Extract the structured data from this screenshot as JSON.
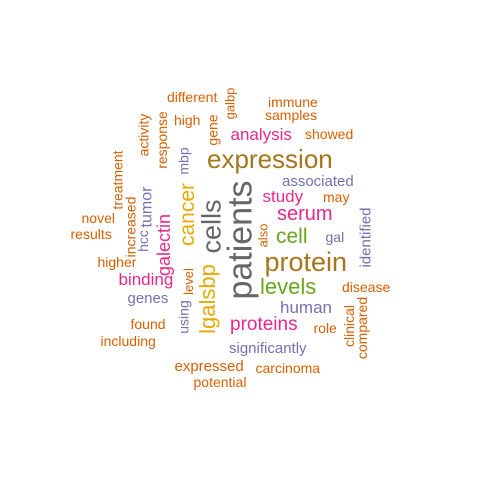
{
  "palette": {
    "orange": "#D95F02",
    "purple": "#7570B3",
    "magenta": "#E7298A",
    "green": "#66A61E",
    "gold": "#E6AB02",
    "brown": "#A6761D",
    "gray": "#666666"
  },
  "words": [
    {
      "text": "patients",
      "color": "gray",
      "vertical": true
    },
    {
      "text": "expression",
      "color": "brown",
      "vertical": false
    },
    {
      "text": "protein",
      "color": "brown",
      "vertical": false
    },
    {
      "text": "cells",
      "color": "gray",
      "vertical": true
    },
    {
      "text": "lgalsbp",
      "color": "gold",
      "vertical": true
    },
    {
      "text": "cancer",
      "color": "gold",
      "vertical": true
    },
    {
      "text": "levels",
      "color": "green",
      "vertical": false
    },
    {
      "text": "cell",
      "color": "green",
      "vertical": false
    },
    {
      "text": "serum",
      "color": "magenta",
      "vertical": false
    },
    {
      "text": "proteins",
      "color": "magenta",
      "vertical": false
    },
    {
      "text": "galectin",
      "color": "magenta",
      "vertical": true
    },
    {
      "text": "binding",
      "color": "magenta",
      "vertical": false
    },
    {
      "text": "analysis",
      "color": "magenta",
      "vertical": false
    },
    {
      "text": "study",
      "color": "magenta",
      "vertical": false
    },
    {
      "text": "tumor",
      "color": "purple",
      "vertical": true
    },
    {
      "text": "human",
      "color": "purple",
      "vertical": false
    },
    {
      "text": "genes",
      "color": "purple",
      "vertical": false
    },
    {
      "text": "associated",
      "color": "purple",
      "vertical": false
    },
    {
      "text": "significantly",
      "color": "purple",
      "vertical": false
    },
    {
      "text": "identified",
      "color": "purple",
      "vertical": true
    },
    {
      "text": "hcc",
      "color": "purple",
      "vertical": true
    },
    {
      "text": "mbp",
      "color": "purple",
      "vertical": true
    },
    {
      "text": "gal",
      "color": "purple",
      "vertical": false
    },
    {
      "text": "using",
      "color": "purple",
      "vertical": true
    },
    {
      "text": "increased",
      "color": "orange",
      "vertical": true
    },
    {
      "text": "response",
      "color": "orange",
      "vertical": true
    },
    {
      "text": "treatment",
      "color": "orange",
      "vertical": true
    },
    {
      "text": "activity",
      "color": "orange",
      "vertical": true
    },
    {
      "text": "gene",
      "color": "orange",
      "vertical": true
    },
    {
      "text": "galbp",
      "color": "orange",
      "vertical": true
    },
    {
      "text": "different",
      "color": "orange",
      "vertical": false
    },
    {
      "text": "immune",
      "color": "orange",
      "vertical": false
    },
    {
      "text": "samples",
      "color": "orange",
      "vertical": false
    },
    {
      "text": "high",
      "color": "orange",
      "vertical": false
    },
    {
      "text": "showed",
      "color": "orange",
      "vertical": false
    },
    {
      "text": "may",
      "color": "orange",
      "vertical": false
    },
    {
      "text": "novel",
      "color": "orange",
      "vertical": false
    },
    {
      "text": "results",
      "color": "orange",
      "vertical": false
    },
    {
      "text": "higher",
      "color": "orange",
      "vertical": false
    },
    {
      "text": "also",
      "color": "orange",
      "vertical": true
    },
    {
      "text": "level",
      "color": "orange",
      "vertical": true
    },
    {
      "text": "disease",
      "color": "orange",
      "vertical": false
    },
    {
      "text": "found",
      "color": "orange",
      "vertical": false
    },
    {
      "text": "role",
      "color": "orange",
      "vertical": false
    },
    {
      "text": "clinical",
      "color": "orange",
      "vertical": true
    },
    {
      "text": "compared",
      "color": "orange",
      "vertical": true
    },
    {
      "text": "including",
      "color": "orange",
      "vertical": false
    },
    {
      "text": "expressed",
      "color": "orange",
      "vertical": false
    },
    {
      "text": "carcinoma",
      "color": "orange",
      "vertical": false
    },
    {
      "text": "potential",
      "color": "orange",
      "vertical": false
    }
  ]
}
